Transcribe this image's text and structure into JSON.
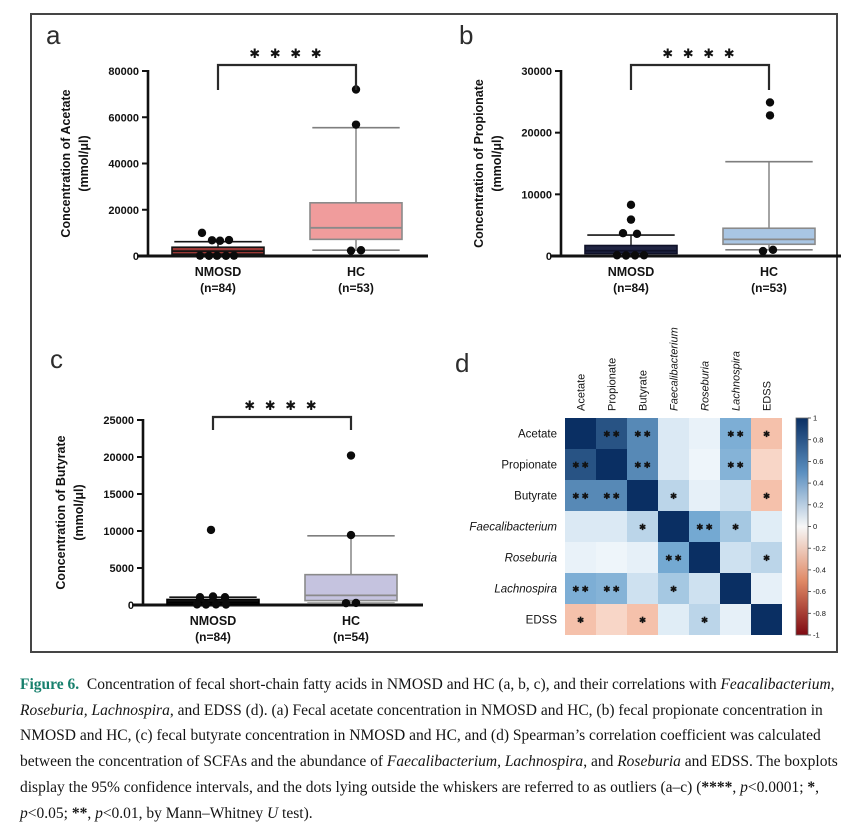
{
  "caption": {
    "accent_color": "#17806d",
    "segments": [
      {
        "text": "Figure 6.",
        "bold": true,
        "accent": true
      },
      {
        "text": "  Concentration of fecal short-chain fatty acids in NMOSD and HC (a, b, c), and their correlations with "
      },
      {
        "text": "Feacalibacterium, Roseburia, Lachnospira",
        "italic": true
      },
      {
        "text": ", and EDSS (d). (a) Fecal acetate concentration in NMOSD and HC, (b) fecal propionate concentration in NMOSD and HC, (c) fecal butyrate concentration in NMOSD and HC, and (d) Spearman’s correlation coefficient was calculated between the concentration of SCFAs and the abundance of "
      },
      {
        "text": "Faecalibacterium, Lachnospira",
        "italic": true
      },
      {
        "text": ", and "
      },
      {
        "text": "Roseburia",
        "italic": true
      },
      {
        "text": " and EDSS. The boxplots display the 95% confidence intervals, and the dots lying outside the whiskers are referred to as outliers (a–c) ("
      },
      {
        "text": "****",
        "bold": true
      },
      {
        "text": ", "
      },
      {
        "text": "p",
        "italic": true
      },
      {
        "text": "<0.0001; "
      },
      {
        "text": "*",
        "bold": true
      },
      {
        "text": ", "
      },
      {
        "text": "p",
        "italic": true
      },
      {
        "text": "<0.05; "
      },
      {
        "text": "**",
        "bold": true
      },
      {
        "text": ", "
      },
      {
        "text": "p",
        "italic": true
      },
      {
        "text": "<0.01, by Mann–Whitney "
      },
      {
        "text": "U",
        "italic": true
      },
      {
        "text": " test)."
      }
    ]
  },
  "chart_data": [
    {
      "type": "box",
      "panel_label": "a",
      "ylabel_line1": "Concentration of Acetate",
      "ylabel_line2": "(mmol/μl)",
      "ylim": [
        0,
        80000
      ],
      "yticks": [
        0,
        20000,
        40000,
        60000,
        80000
      ],
      "significance": "✱ ✱ ✱ ✱",
      "groups": [
        {
          "label": "NMOSD",
          "n_label": "(n=84)",
          "fill": "#9b3835",
          "stroke": "#141414",
          "whisker_color": "#141414",
          "whisker_low": 150,
          "q1": 800,
          "median": 2100,
          "q3": 3800,
          "whisker_high": 6200,
          "outliers": [
            {
              "dx": -16,
              "v": 10000
            },
            {
              "dx": -6,
              "v": 6800
            },
            {
              "dx": 2,
              "v": 6600
            },
            {
              "dx": 11,
              "v": 6900
            },
            {
              "dx": -18,
              "v": 150
            },
            {
              "dx": -9,
              "v": 100
            },
            {
              "dx": -1,
              "v": 120
            },
            {
              "dx": 8,
              "v": 100
            },
            {
              "dx": 16,
              "v": 150
            }
          ]
        },
        {
          "label": "HC",
          "n_label": "(n=53)",
          "fill": "#f09c9c",
          "stroke": "#8a8a8a",
          "whisker_color": "#7e7e7e",
          "whisker_low": 2500,
          "q1": 7200,
          "median": 12200,
          "q3": 23000,
          "whisker_high": 55500,
          "outliers": [
            {
              "dx": 0,
              "v": 72000
            },
            {
              "dx": 0,
              "v": 56800
            },
            {
              "dx": -5,
              "v": 2300
            },
            {
              "dx": 5,
              "v": 2500
            }
          ]
        }
      ]
    },
    {
      "type": "box",
      "panel_label": "b",
      "ylabel_line1": "Concentration of Propionate",
      "ylabel_line2": "(mmol/μl)",
      "ylim": [
        0,
        30000
      ],
      "yticks": [
        0,
        10000,
        20000,
        30000
      ],
      "significance": "✱ ✱ ✱ ✱",
      "groups": [
        {
          "label": "NMOSD",
          "n_label": "(n=84)",
          "fill": "#212543",
          "stroke": "#0f1128",
          "whisker_color": "#141414",
          "whisker_low": 60,
          "q1": 400,
          "median": 850,
          "q3": 1700,
          "whisker_high": 3400,
          "outliers": [
            {
              "dx": 0,
              "v": 8300
            },
            {
              "dx": 0,
              "v": 5900
            },
            {
              "dx": -8,
              "v": 3700
            },
            {
              "dx": 6,
              "v": 3600
            },
            {
              "dx": -14,
              "v": 120
            },
            {
              "dx": -5,
              "v": 80
            },
            {
              "dx": 4,
              "v": 100
            },
            {
              "dx": 13,
              "v": 120
            }
          ]
        },
        {
          "label": "HC",
          "n_label": "(n=53)",
          "fill": "#a9c6e4",
          "stroke": "#8a8a8a",
          "whisker_color": "#7e7e7e",
          "whisker_low": 1000,
          "q1": 1900,
          "median": 2700,
          "q3": 4500,
          "whisker_high": 15300,
          "outliers": [
            {
              "dx": 1,
              "v": 24900
            },
            {
              "dx": 1,
              "v": 22800
            },
            {
              "dx": -6,
              "v": 800
            },
            {
              "dx": 4,
              "v": 1000
            }
          ]
        }
      ]
    },
    {
      "type": "box",
      "panel_label": "c",
      "ylabel_line1": "Concentration of Butyrate",
      "ylabel_line2": "(mmol/μl)",
      "ylim": [
        0,
        25000
      ],
      "yticks": [
        0,
        5000,
        10000,
        15000,
        20000,
        25000
      ],
      "significance": "✱ ✱ ✱ ✱",
      "groups": [
        {
          "label": "NMOSD",
          "n_label": "(n=84)",
          "fill": "#161616",
          "stroke": "#000000",
          "whisker_color": "#141414",
          "whisker_low": 30,
          "q1": 100,
          "median": 350,
          "q3": 750,
          "whisker_high": 1050,
          "outliers": [
            {
              "dx": -2,
              "v": 10150
            },
            {
              "dx": -13,
              "v": 1050
            },
            {
              "dx": 0,
              "v": 1150
            },
            {
              "dx": 12,
              "v": 1050
            },
            {
              "dx": -16,
              "v": 80
            },
            {
              "dx": -7,
              "v": 60
            },
            {
              "dx": 3,
              "v": 80
            },
            {
              "dx": 13,
              "v": 60
            }
          ]
        },
        {
          "label": "HC",
          "n_label": "(n=54)",
          "fill": "#c5c3df",
          "stroke": "#8a8a8a",
          "whisker_color": "#7e7e7e",
          "whisker_low": 250,
          "q1": 600,
          "median": 1300,
          "q3": 4100,
          "whisker_high": 9350,
          "outliers": [
            {
              "dx": 0,
              "v": 20200
            },
            {
              "dx": 0,
              "v": 9450
            },
            {
              "dx": -5,
              "v": 250
            },
            {
              "dx": 5,
              "v": 280
            }
          ]
        }
      ]
    },
    {
      "type": "heatmap",
      "panel_label": "d",
      "variables": [
        {
          "name": "Acetate",
          "italic": false
        },
        {
          "name": "Propionate",
          "italic": false
        },
        {
          "name": "Butyrate",
          "italic": false
        },
        {
          "name": "Faecalibacterium",
          "italic": true
        },
        {
          "name": "Roseburia",
          "italic": true
        },
        {
          "name": "Lachnospira",
          "italic": true
        },
        {
          "name": "EDSS",
          "italic": false
        }
      ],
      "matrix": [
        [
          1.0,
          0.85,
          0.62,
          0.1,
          0.05,
          0.45,
          -0.3
        ],
        [
          0.85,
          1.0,
          0.62,
          0.1,
          0.03,
          0.42,
          -0.18
        ],
        [
          0.62,
          0.62,
          1.0,
          0.22,
          0.06,
          0.15,
          -0.3
        ],
        [
          0.1,
          0.1,
          0.22,
          1.0,
          0.48,
          0.3,
          0.08
        ],
        [
          0.05,
          0.03,
          0.06,
          0.48,
          1.0,
          0.15,
          0.22
        ],
        [
          0.45,
          0.42,
          0.15,
          0.3,
          0.15,
          1.0,
          0.06
        ],
        [
          -0.3,
          -0.18,
          -0.3,
          0.08,
          0.22,
          0.06,
          1.0
        ]
      ],
      "stars": [
        [
          "",
          "**",
          "**",
          "",
          "",
          "**",
          "*"
        ],
        [
          "**",
          "",
          "**",
          "",
          "",
          "**",
          ""
        ],
        [
          "**",
          "**",
          "",
          "*",
          "",
          "",
          "*"
        ],
        [
          "",
          "",
          "*",
          "",
          "**",
          "*",
          ""
        ],
        [
          "",
          "",
          "",
          "**",
          "",
          "",
          "*"
        ],
        [
          "**",
          "**",
          "",
          "*",
          "",
          "",
          ""
        ],
        [
          "*",
          "",
          "*",
          "",
          "*",
          "",
          ""
        ]
      ],
      "colorbar_ticks": [
        "1",
        "0.8",
        "0.6",
        "0.4",
        "0.2",
        "0",
        "-0.2",
        "-0.4",
        "-0.6",
        "-0.8",
        "-1"
      ],
      "colorbar_range": [
        -1,
        1
      ],
      "scale_colors": {
        "positive_max": "#0a2f63",
        "mid": "#f7f7f7",
        "negative_max": "#7f0a12"
      }
    }
  ]
}
